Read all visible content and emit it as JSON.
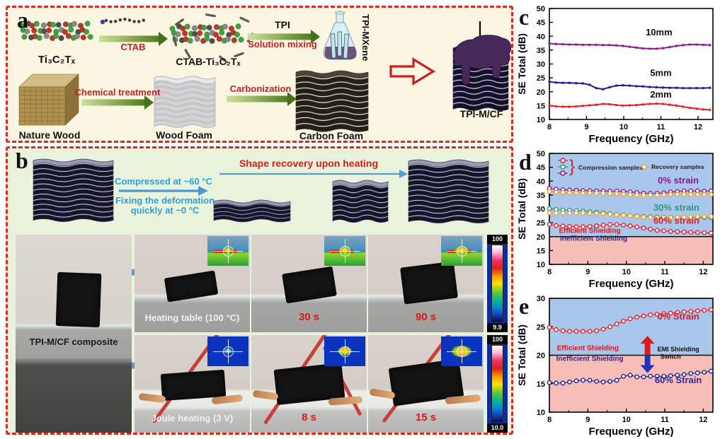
{
  "figure": {
    "panel_a": {
      "letter": "a",
      "mxene": "Ti₃C₂Tₓ",
      "arrow_ctab": "CTAB",
      "ctab_mxene": "CTAB-Ti₃C₂Tₓ",
      "arrow_tpi_top": "TPI",
      "arrow_tpi_bottom": "Solution mixing",
      "flask": "TPI-MXene",
      "wood": "Nature Wood",
      "arrow_chem": "Chemical treatment",
      "wood_foam": "Wood Foam",
      "arrow_carb": "Carbonization",
      "carbon_foam": "Carbon Foam",
      "product": "TPI-M/CF"
    },
    "panel_b": {
      "letter": "b",
      "compress": "Compressed at ~60 °C",
      "fix1": "Fixing the deformation",
      "fix2": "quickly at ~0 °C",
      "recovery": "Shape recovery upon heating",
      "composite": "TPI-M/CF composite",
      "heating": "Heating table (100 °C)",
      "t30": "30 s",
      "t90": "90 s",
      "joule": "Joule heating (3 V)",
      "t8": "8 s",
      "t15": "15 s",
      "cbar_top": "100",
      "cbar1_bottom": "9.9",
      "cbar2_bottom": "10.0"
    },
    "panel_c_letter": "c",
    "panel_d_letter": "d",
    "panel_e_letter": "e"
  },
  "colors": {
    "border_red": "#d92b23",
    "panel_a_bg": "#faf6e1",
    "panel_b_bg": "#e9f2da",
    "label_red": "#c42222",
    "process_blue": "#2da0e0",
    "recovery_red": "#e01818",
    "curve_purple": "#8f1690",
    "curve_navy": "#1d1d96",
    "curve_red": "#ea1c24",
    "curve_teal": "#2a9a88",
    "curve_orange": "#f6a21e",
    "region_blue": "#a9c6ec",
    "region_pink": "#f6beb6"
  },
  "chart_data": [
    {
      "id": "c",
      "type": "line",
      "xlabel": "Frequency (GHz)",
      "ylabel": "SE Total (dB)",
      "xlim": [
        8,
        12.4
      ],
      "ylim": [
        10,
        50
      ],
      "xticks": [
        8,
        9,
        10,
        11,
        12
      ],
      "yticks": [
        10,
        15,
        20,
        25,
        30,
        35,
        40,
        45,
        50
      ],
      "grid": false,
      "x": [
        8,
        8.18,
        8.36,
        8.54,
        8.72,
        8.9,
        9.08,
        9.26,
        9.44,
        9.62,
        9.8,
        9.98,
        10.16,
        10.34,
        10.52,
        10.7,
        10.88,
        11.06,
        11.24,
        11.42,
        11.6,
        11.78,
        11.96,
        12.14,
        12.32
      ],
      "series": [
        {
          "name": "10mm",
          "color": "#8f1690",
          "marker": "dense",
          "values": [
            37.4,
            37.2,
            37.1,
            37.0,
            37.0,
            36.9,
            36.9,
            36.9,
            36.8,
            36.8,
            36.7,
            36.5,
            36.2,
            35.9,
            35.6,
            35.5,
            35.5,
            35.7,
            36.1,
            36.5,
            36.8,
            37.0,
            37.0,
            36.9,
            36.8
          ]
        },
        {
          "name": "5mm",
          "color": "#1d1d96",
          "marker": "dense",
          "values": [
            23.6,
            23.3,
            23.2,
            23.2,
            23.1,
            23.0,
            22.5,
            21.3,
            20.9,
            21.6,
            22.2,
            22.3,
            22.2,
            22.0,
            21.9,
            21.7,
            21.6,
            21.5,
            21.4,
            21.4,
            21.3,
            21.3,
            21.3,
            21.3,
            21.4
          ]
        },
        {
          "name": "2mm",
          "color": "#ea1c24",
          "marker": "dense",
          "values": [
            15.0,
            14.7,
            14.6,
            14.6,
            14.7,
            14.9,
            15.1,
            15.3,
            15.6,
            15.5,
            15.2,
            15.0,
            15.1,
            15.2,
            15.4,
            15.6,
            15.7,
            15.6,
            15.3,
            15.0,
            14.6,
            14.2,
            13.9,
            13.6,
            13.5
          ]
        }
      ],
      "annotations": [
        {
          "text": "10mm",
          "x": 10.95,
          "y": 40.3,
          "color": "#111111",
          "size": 13
        },
        {
          "text": "5mm",
          "x": 11.0,
          "y": 25.7,
          "color": "#111111",
          "size": 13
        },
        {
          "text": "2mm",
          "x": 11.0,
          "y": 17.9,
          "color": "#111111",
          "size": 13
        }
      ]
    },
    {
      "id": "d",
      "type": "line",
      "xlabel": "Frequency (GHz)",
      "ylabel": "SE Total (dB)",
      "xlim": [
        8,
        12.25
      ],
      "ylim": [
        10,
        50
      ],
      "xticks": [
        8,
        9,
        10,
        11,
        12
      ],
      "yticks": [
        10,
        15,
        20,
        25,
        30,
        35,
        40,
        45,
        50
      ],
      "grid": false,
      "regions": [
        {
          "y0": 20,
          "y1": 50,
          "color": "#a9c6ec"
        },
        {
          "y0": 10,
          "y1": 20,
          "color": "#f6beb6"
        }
      ],
      "hline": 20,
      "legend": {
        "compression_colors": [
          "#ea1c24",
          "#2a9a88",
          "#8f1690"
        ],
        "compression_label": "Compression samples",
        "recovery_color": "#f6a21e",
        "recovery_label": "Recovery samples"
      },
      "x": [
        8,
        8.175,
        8.35,
        8.525,
        8.7,
        8.875,
        9.05,
        9.225,
        9.4,
        9.575,
        9.75,
        9.925,
        10.1,
        10.275,
        10.45,
        10.625,
        10.8,
        10.975,
        11.15,
        11.325,
        11.5,
        11.675,
        11.85,
        12.025,
        12.2
      ],
      "series": [
        {
          "name": "0% strain compression",
          "color": "#8f1690",
          "marker": "open",
          "values": [
            37.4,
            37.1,
            36.9,
            36.8,
            36.7,
            36.6,
            36.6,
            36.5,
            36.5,
            36.4,
            36.4,
            36.3,
            36.1,
            35.9,
            35.7,
            35.6,
            35.6,
            35.8,
            36.1,
            36.3,
            36.5,
            36.5,
            36.5,
            36.4,
            36.5
          ]
        },
        {
          "name": "0% strain recovery",
          "color": "#f6a21e",
          "marker": "open",
          "values": [
            36.3,
            36.0,
            35.9,
            35.8,
            35.8,
            35.7,
            35.7,
            35.6,
            35.6,
            35.5,
            35.4,
            35.3,
            35.1,
            35.0,
            34.9,
            35.0,
            35.0,
            35.1,
            35.2,
            35.2,
            35.3,
            35.2,
            35.2,
            35.2,
            35.2
          ]
        },
        {
          "name": "30% strain compression",
          "color": "#2a9a88",
          "marker": "open",
          "values": [
            30.1,
            29.8,
            29.6,
            29.5,
            29.4,
            29.2,
            29.0,
            28.8,
            28.6,
            28.3,
            28.0,
            27.8,
            27.6,
            27.4,
            27.3,
            27.2,
            27.1,
            27.0,
            27.0,
            27.0,
            27.0,
            27.0,
            26.9,
            26.9,
            26.8
          ]
        },
        {
          "name": "30% strain recovery",
          "color": "#f6a21e",
          "marker": "open",
          "values": [
            28.6,
            28.5,
            28.5,
            28.5,
            28.5,
            28.5,
            28.4,
            28.4,
            28.3,
            28.1,
            27.9,
            27.7,
            27.5,
            27.3,
            27.1,
            27.0,
            26.9,
            26.9,
            26.9,
            27.0,
            27.0,
            27.1,
            27.2,
            27.2,
            27.3
          ]
        },
        {
          "name": "60% strain compression",
          "color": "#ea1c24",
          "marker": "open",
          "values": [
            24.4,
            24.0,
            23.8,
            23.7,
            23.6,
            23.6,
            23.7,
            23.9,
            24.2,
            24.4,
            24.4,
            24.2,
            23.9,
            23.5,
            23.1,
            22.7,
            22.3,
            22.1,
            21.9,
            21.8,
            21.7,
            21.6,
            21.5,
            21.4,
            21.3
          ]
        }
      ],
      "annotations": [
        {
          "text": "0% strain",
          "x": 11.35,
          "y": 39.2,
          "color": "#8f1690",
          "size": 13
        },
        {
          "text": "30% strain",
          "x": 11.3,
          "y": 29.4,
          "color": "#2a9a88",
          "size": 13
        },
        {
          "text": "60% strain",
          "x": 11.3,
          "y": 24.6,
          "color": "#ea1c24",
          "size": 13
        },
        {
          "text": "Efficient Shielding",
          "x": 9.05,
          "y": 21.3,
          "color": "#e01820",
          "size": 10
        },
        {
          "text": "Inefficient Shielding",
          "x": 9.15,
          "y": 18.5,
          "color": "#2a2a99",
          "size": 10
        }
      ]
    },
    {
      "id": "e",
      "type": "line",
      "xlabel": "Frequency (GHz)",
      "ylabel": "SE Total (dB)",
      "xlim": [
        8,
        12.25
      ],
      "ylim": [
        10,
        30
      ],
      "xticks": [
        8,
        9,
        10,
        11,
        12
      ],
      "yticks": [
        10,
        15,
        20,
        25,
        30
      ],
      "grid": false,
      "regions": [
        {
          "y0": 20,
          "y1": 30,
          "color": "#a9c6ec"
        },
        {
          "y0": 10,
          "y1": 20,
          "color": "#f6beb6"
        }
      ],
      "hline": 20,
      "switch_arrow": {
        "x": 10.55,
        "y_top": 23.4,
        "y_bottom": 16.9,
        "mid": 20,
        "up_color": "#e01820",
        "down_color": "#2233bb"
      },
      "x": [
        8,
        8.175,
        8.35,
        8.525,
        8.7,
        8.875,
        9.05,
        9.225,
        9.4,
        9.575,
        9.75,
        9.925,
        10.1,
        10.275,
        10.45,
        10.625,
        10.8,
        10.975,
        11.15,
        11.325,
        11.5,
        11.675,
        11.85,
        12.025,
        12.2
      ],
      "series": [
        {
          "name": "0% Strain",
          "color": "#ea1c24",
          "marker": "open",
          "values": [
            24.9,
            24.5,
            24.3,
            24.2,
            24.2,
            24.2,
            24.2,
            24.3,
            24.6,
            25.0,
            25.5,
            26.0,
            26.4,
            26.7,
            26.9,
            27.1,
            27.2,
            27.3,
            27.4,
            27.5,
            27.6,
            27.7,
            27.8,
            27.9,
            28.0
          ]
        },
        {
          "name": "60% Strain",
          "color": "#1d1d96",
          "marker": "open",
          "values": [
            15.2,
            15.1,
            15.1,
            15.3,
            15.5,
            15.6,
            15.6,
            15.4,
            15.3,
            15.4,
            15.6,
            16.3,
            16.5,
            16.2,
            16.2,
            16.3,
            16.3,
            16.3,
            16.4,
            16.5,
            16.6,
            16.8,
            16.9,
            17.0,
            17.2
          ]
        }
      ],
      "annotations": [
        {
          "text": "0% Strain",
          "x": 11.35,
          "y": 26.3,
          "color": "#e01820",
          "size": 13
        },
        {
          "text": "60% Strain",
          "x": 11.35,
          "y": 15.1,
          "color": "#2a2a99",
          "size": 13
        },
        {
          "text": "Efficient Shielding",
          "x": 9.0,
          "y": 20.9,
          "color": "#e01820",
          "size": 10
        },
        {
          "text": "Inefficient Shielding",
          "x": 9.05,
          "y": 19.0,
          "color": "#2a2a99",
          "size": 10
        },
        {
          "text": "EMI Shielding",
          "x": 11.35,
          "y": 20.7,
          "color": "#111111",
          "size": 9
        },
        {
          "text": "Switch",
          "x": 11.15,
          "y": 19.4,
          "color": "#111111",
          "size": 9
        }
      ]
    }
  ]
}
